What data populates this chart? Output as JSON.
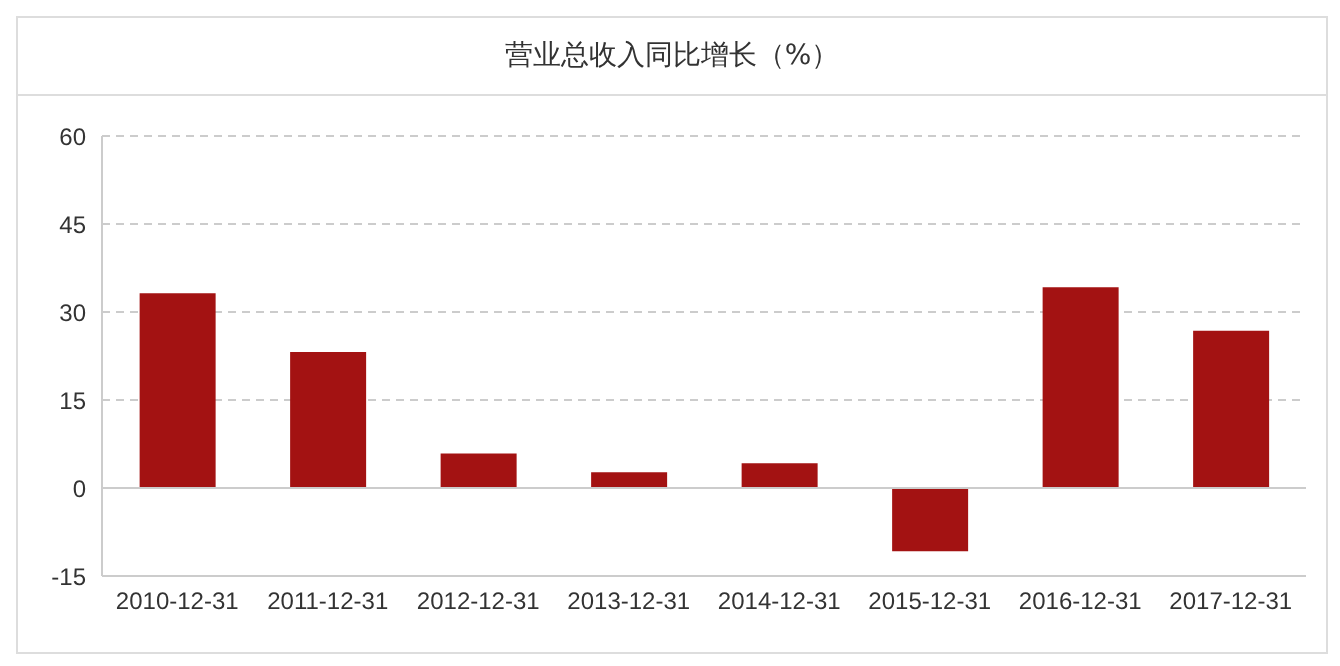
{
  "chart_data": {
    "type": "bar",
    "title": "营业总收入同比增长（%）",
    "categories": [
      "2010-12-31",
      "2011-12-31",
      "2012-12-31",
      "2013-12-31",
      "2014-12-31",
      "2015-12-31",
      "2016-12-31",
      "2017-12-31"
    ],
    "values": [
      33.2,
      23.2,
      5.9,
      2.7,
      4.2,
      -10.8,
      34.2,
      26.8
    ],
    "color": "#a31212",
    "ylim": [
      -15,
      60
    ],
    "yticks": [
      -15,
      0,
      15,
      30,
      45,
      60
    ],
    "grid": "y"
  }
}
